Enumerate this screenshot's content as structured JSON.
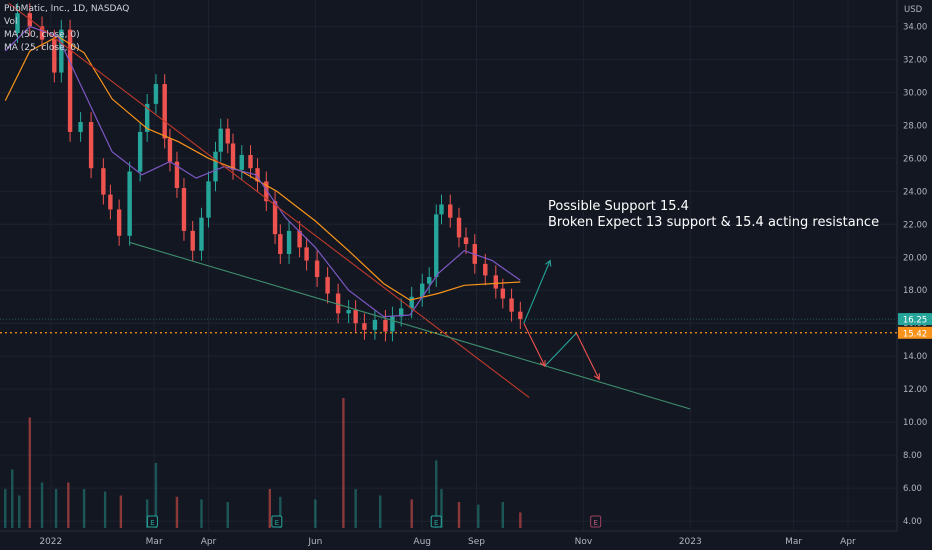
{
  "legend": {
    "symbol_line": "PubMatic, Inc., 1D, NASDAQ",
    "vol_label": "Vol",
    "ma50_label": "MA (50, close, 0)",
    "ma25_label": "MA (25, close, 0)"
  },
  "currency": "USD",
  "annotation": {
    "line1": "Possible Support 15.4",
    "line2": "Broken Expect 13 support & 15.4 acting resistance"
  },
  "price_badges": [
    {
      "label": "16.25",
      "value": 16.25,
      "color": "#26a69a"
    },
    {
      "label": "15.42",
      "value": 15.42,
      "color": "#f7931a"
    }
  ],
  "chart_data": {
    "type": "candlestick",
    "y_ticks": [
      34,
      32,
      30,
      28,
      26,
      24,
      22,
      20,
      18,
      16,
      14,
      12,
      10,
      8,
      6,
      4
    ],
    "y_tick_labels": [
      "34.00",
      "32.00",
      "30.00",
      "28.00",
      "26.00",
      "24.00",
      "22.00",
      "20.00",
      "18.00",
      "16.00",
      "14.00",
      "12.00",
      "10.00",
      "8.00",
      "6.00",
      "4.00"
    ],
    "ylim": [
      3.4,
      35.6
    ],
    "x_labels": [
      {
        "label": "2022",
        "date": "2022-01-01"
      },
      {
        "label": "Mar",
        "date": "2022-03-01"
      },
      {
        "label": "Apr",
        "date": "2022-04-01"
      },
      {
        "label": "Jun",
        "date": "2022-06-01"
      },
      {
        "label": "Aug",
        "date": "2022-08-01"
      },
      {
        "label": "Sep",
        "date": "2022-09-01"
      },
      {
        "label": "Nov",
        "date": "2022-11-01"
      },
      {
        "label": "2023",
        "date": "2023-01-01"
      },
      {
        "label": "Mar",
        "date": "2023-03-01"
      },
      {
        "label": "Apr",
        "date": "2023-04-01"
      }
    ],
    "x_range": [
      "2021-12-03",
      "2023-04-29"
    ],
    "closes": [
      {
        "date": "2021-12-06",
        "close": 33.6
      },
      {
        "date": "2021-12-13",
        "close": 34.8
      },
      {
        "date": "2021-12-20",
        "close": 34.0
      },
      {
        "date": "2021-12-27",
        "close": 33.2
      },
      {
        "date": "2022-01-03",
        "close": 31.2
      },
      {
        "date": "2022-01-07",
        "close": 33.8
      },
      {
        "date": "2022-01-12",
        "close": 27.6
      },
      {
        "date": "2022-01-18",
        "close": 28.2
      },
      {
        "date": "2022-01-24",
        "close": 25.4
      },
      {
        "date": "2022-01-31",
        "close": 23.8
      },
      {
        "date": "2022-02-04",
        "close": 22.9
      },
      {
        "date": "2022-02-09",
        "close": 21.3
      },
      {
        "date": "2022-02-15",
        "close": 25.2
      },
      {
        "date": "2022-02-21",
        "close": 27.6
      },
      {
        "date": "2022-02-25",
        "close": 29.3
      },
      {
        "date": "2022-03-02",
        "close": 30.5
      },
      {
        "date": "2022-03-07",
        "close": 27.2
      },
      {
        "date": "2022-03-10",
        "close": 25.8
      },
      {
        "date": "2022-03-14",
        "close": 24.2
      },
      {
        "date": "2022-03-18",
        "close": 21.6
      },
      {
        "date": "2022-03-23",
        "close": 20.4
      },
      {
        "date": "2022-03-28",
        "close": 22.4
      },
      {
        "date": "2022-04-01",
        "close": 24.6
      },
      {
        "date": "2022-04-05",
        "close": 26.4
      },
      {
        "date": "2022-04-08",
        "close": 27.8
      },
      {
        "date": "2022-04-12",
        "close": 26.9
      },
      {
        "date": "2022-04-15",
        "close": 25.3
      },
      {
        "date": "2022-04-20",
        "close": 26.2
      },
      {
        "date": "2022-04-25",
        "close": 25.4
      },
      {
        "date": "2022-04-29",
        "close": 24.6
      },
      {
        "date": "2022-05-04",
        "close": 23.4
      },
      {
        "date": "2022-05-09",
        "close": 21.4
      },
      {
        "date": "2022-05-12",
        "close": 20.2
      },
      {
        "date": "2022-05-17",
        "close": 21.6
      },
      {
        "date": "2022-05-23",
        "close": 20.6
      },
      {
        "date": "2022-05-27",
        "close": 19.8
      },
      {
        "date": "2022-06-02",
        "close": 18.8
      },
      {
        "date": "2022-06-08",
        "close": 17.8
      },
      {
        "date": "2022-06-14",
        "close": 16.6
      },
      {
        "date": "2022-06-20",
        "close": 16.8
      },
      {
        "date": "2022-06-24",
        "close": 16.0
      },
      {
        "date": "2022-06-29",
        "close": 15.6
      },
      {
        "date": "2022-07-05",
        "close": 16.2
      },
      {
        "date": "2022-07-11",
        "close": 15.5
      },
      {
        "date": "2022-07-15",
        "close": 16.4
      },
      {
        "date": "2022-07-20",
        "close": 16.9
      },
      {
        "date": "2022-07-26",
        "close": 17.6
      },
      {
        "date": "2022-08-01",
        "close": 18.4
      },
      {
        "date": "2022-08-05",
        "close": 18.8
      },
      {
        "date": "2022-08-09",
        "close": 22.6
      },
      {
        "date": "2022-08-12",
        "close": 23.2
      },
      {
        "date": "2022-08-17",
        "close": 22.4
      },
      {
        "date": "2022-08-22",
        "close": 21.2
      },
      {
        "date": "2022-08-26",
        "close": 20.8
      },
      {
        "date": "2022-08-31",
        "close": 19.6
      },
      {
        "date": "2022-09-06",
        "close": 18.9
      },
      {
        "date": "2022-09-12",
        "close": 18.1
      },
      {
        "date": "2022-09-16",
        "close": 17.5
      },
      {
        "date": "2022-09-21",
        "close": 16.7
      },
      {
        "date": "2022-09-26",
        "close": 16.25
      }
    ],
    "ma50_closes": [
      {
        "date": "2021-12-06",
        "close": 29.5
      },
      {
        "date": "2021-12-20",
        "close": 32.5
      },
      {
        "date": "2022-01-05",
        "close": 33.4
      },
      {
        "date": "2022-01-20",
        "close": 32.4
      },
      {
        "date": "2022-02-05",
        "close": 29.6
      },
      {
        "date": "2022-02-25",
        "close": 27.8
      },
      {
        "date": "2022-03-15",
        "close": 27.0
      },
      {
        "date": "2022-04-01",
        "close": 26.0
      },
      {
        "date": "2022-04-20",
        "close": 25.2
      },
      {
        "date": "2022-05-10",
        "close": 24.0
      },
      {
        "date": "2022-06-01",
        "close": 22.2
      },
      {
        "date": "2022-06-20",
        "close": 20.4
      },
      {
        "date": "2022-07-10",
        "close": 18.4
      },
      {
        "date": "2022-07-25",
        "close": 17.4
      },
      {
        "date": "2022-08-10",
        "close": 17.8
      },
      {
        "date": "2022-08-25",
        "close": 18.3
      },
      {
        "date": "2022-09-10",
        "close": 18.4
      },
      {
        "date": "2022-09-26",
        "close": 18.5
      }
    ],
    "ma25_closes": [
      {
        "date": "2021-12-06",
        "close": 32.5
      },
      {
        "date": "2021-12-20",
        "close": 34.0
      },
      {
        "date": "2022-01-05",
        "close": 33.4
      },
      {
        "date": "2022-01-20",
        "close": 30.0
      },
      {
        "date": "2022-02-05",
        "close": 26.4
      },
      {
        "date": "2022-02-22",
        "close": 25.0
      },
      {
        "date": "2022-03-10",
        "close": 25.8
      },
      {
        "date": "2022-03-25",
        "close": 24.8
      },
      {
        "date": "2022-04-10",
        "close": 25.5
      },
      {
        "date": "2022-04-28",
        "close": 25.0
      },
      {
        "date": "2022-05-15",
        "close": 22.4
      },
      {
        "date": "2022-06-01",
        "close": 20.6
      },
      {
        "date": "2022-06-20",
        "close": 18.0
      },
      {
        "date": "2022-07-10",
        "close": 16.4
      },
      {
        "date": "2022-07-25",
        "close": 16.5
      },
      {
        "date": "2022-08-10",
        "close": 19.0
      },
      {
        "date": "2022-08-25",
        "close": 20.4
      },
      {
        "date": "2022-09-10",
        "close": 19.8
      },
      {
        "date": "2022-09-26",
        "close": 18.6
      }
    ],
    "volume": [
      {
        "date": "2021-12-06",
        "v": 0.3
      },
      {
        "date": "2021-12-10",
        "v": 0.45
      },
      {
        "date": "2021-12-14",
        "v": 0.25
      },
      {
        "date": "2021-12-20",
        "v": 0.85
      },
      {
        "date": "2021-12-27",
        "v": 0.35
      },
      {
        "date": "2022-01-04",
        "v": 0.3
      },
      {
        "date": "2022-01-11",
        "v": 0.35
      },
      {
        "date": "2022-01-20",
        "v": 0.3
      },
      {
        "date": "2022-02-01",
        "v": 0.28
      },
      {
        "date": "2022-02-10",
        "v": 0.25
      },
      {
        "date": "2022-02-25",
        "v": 0.22
      },
      {
        "date": "2022-03-02",
        "v": 0.5
      },
      {
        "date": "2022-03-14",
        "v": 0.24
      },
      {
        "date": "2022-03-28",
        "v": 0.22
      },
      {
        "date": "2022-04-12",
        "v": 0.2
      },
      {
        "date": "2022-05-06",
        "v": 0.3
      },
      {
        "date": "2022-05-12",
        "v": 0.24
      },
      {
        "date": "2022-06-01",
        "v": 0.22
      },
      {
        "date": "2022-06-17",
        "v": 1.0
      },
      {
        "date": "2022-06-24",
        "v": 0.3
      },
      {
        "date": "2022-07-08",
        "v": 0.25
      },
      {
        "date": "2022-07-26",
        "v": 0.22
      },
      {
        "date": "2022-08-09",
        "v": 0.52
      },
      {
        "date": "2022-08-12",
        "v": 0.3
      },
      {
        "date": "2022-08-22",
        "v": 0.2
      },
      {
        "date": "2022-09-02",
        "v": 0.18
      },
      {
        "date": "2022-09-16",
        "v": 0.2
      },
      {
        "date": "2022-09-26",
        "v": 0.12
      }
    ],
    "event_dates": [
      "2022-02-28",
      "2022-05-10",
      "2022-08-09",
      "2022-11-08"
    ],
    "event_label": "E",
    "drawings": [
      {
        "name": "upper-trendline",
        "color": "#c0392b",
        "points": [
          {
            "date": "2021-12-08",
            "price": 35.4
          },
          {
            "date": "2022-10-01",
            "price": 11.5
          }
        ]
      },
      {
        "name": "lower-trendline",
        "color": "#3e8e6c",
        "points": [
          {
            "date": "2022-02-15",
            "price": 20.9
          },
          {
            "date": "2023-01-01",
            "price": 10.8
          }
        ]
      },
      {
        "name": "path-up",
        "color": "#26a69a",
        "points": [
          {
            "date": "2022-09-28",
            "price": 16.0
          },
          {
            "date": "2022-10-13",
            "price": 19.8
          }
        ]
      },
      {
        "name": "path-down",
        "color": "#ef5350",
        "points": [
          {
            "date": "2022-09-28",
            "price": 16.0
          },
          {
            "date": "2022-10-10",
            "price": 13.4
          }
        ]
      },
      {
        "name": "path-bounce",
        "color": "#26a69a",
        "points": [
          {
            "date": "2022-10-10",
            "price": 13.4
          },
          {
            "date": "2022-10-28",
            "price": 15.4
          }
        ]
      },
      {
        "name": "path-drop",
        "color": "#ef5350",
        "points": [
          {
            "date": "2022-10-28",
            "price": 15.4
          },
          {
            "date": "2022-11-10",
            "price": 12.6
          }
        ]
      }
    ],
    "support_line": 15.42
  },
  "colors": {
    "up": "#26a69a",
    "down": "#ef5350",
    "ma50": "#f7931a",
    "ma25": "#7e57c2",
    "grid": "#1e2230",
    "axis_text": "#b2b5be"
  }
}
